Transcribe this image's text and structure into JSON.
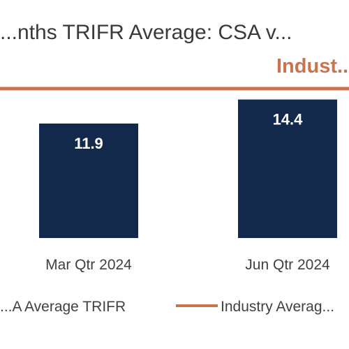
{
  "chart_data": {
    "type": "bar",
    "title": "...nths TRIFR Average: CSA v...",
    "categories": [
      "Mar Qtr 2024",
      "Jun Qtr 2024"
    ],
    "series": [
      {
        "name": "...A Average TRIFR",
        "values": [
          11.9,
          14.4
        ],
        "color": "#13294b"
      },
      {
        "name": "Industry Averag...",
        "type": "line",
        "color": "#c87450"
      }
    ],
    "annotations": [
      "Indust..."
    ],
    "data_labels": [
      "11.9",
      "14.4"
    ],
    "legend": "bottom",
    "grid": false
  }
}
